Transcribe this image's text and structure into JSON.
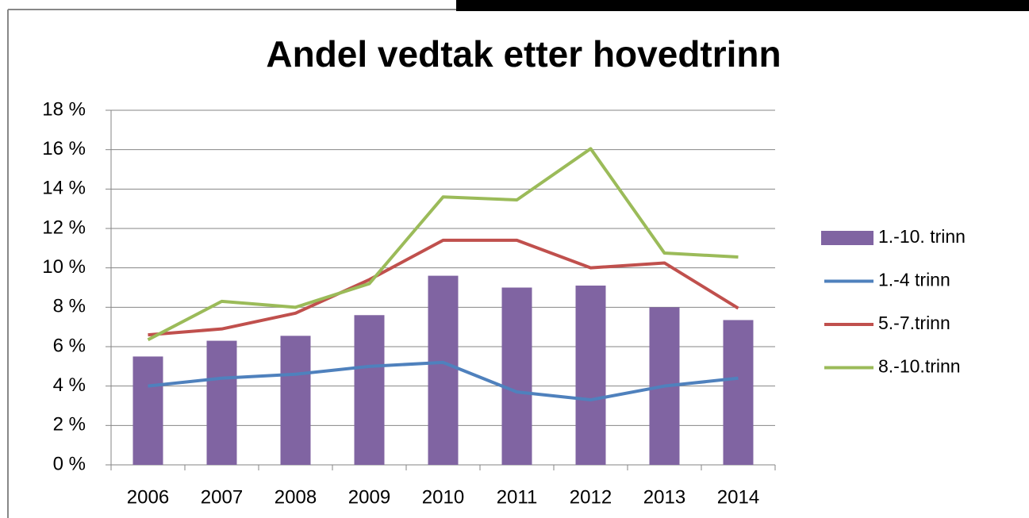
{
  "chart_data": {
    "type": "bar",
    "title": "Andel vedtak etter hovedtrinn",
    "categories": [
      "2006",
      "2007",
      "2008",
      "2009",
      "2010",
      "2011",
      "2012",
      "2013",
      "2014"
    ],
    "series": [
      {
        "name": "1.-10. trinn",
        "type": "bar",
        "color": "#8064a2",
        "values": [
          5.5,
          6.3,
          6.55,
          7.6,
          9.6,
          9.0,
          9.1,
          8.0,
          7.35
        ]
      },
      {
        "name": "1.-4 trinn",
        "type": "line",
        "color": "#4f81bd",
        "values": [
          4.0,
          4.4,
          4.6,
          5.0,
          5.2,
          3.7,
          3.3,
          4.0,
          4.4
        ]
      },
      {
        "name": "5.-7.trinn",
        "type": "line",
        "color": "#c0504d",
        "values": [
          6.6,
          6.9,
          7.7,
          9.4,
          11.4,
          11.4,
          10.0,
          10.25,
          7.95
        ]
      },
      {
        "name": "8.-10.trinn",
        "type": "line",
        "color": "#9bbb59",
        "values": [
          6.35,
          8.3,
          8.0,
          9.2,
          13.6,
          13.45,
          16.05,
          10.75,
          10.55
        ]
      }
    ],
    "ylim": [
      0,
      18
    ],
    "yticks": [
      {
        "value": 0,
        "label": "0 %"
      },
      {
        "value": 2,
        "label": "2 %"
      },
      {
        "value": 4,
        "label": "4 %"
      },
      {
        "value": 6,
        "label": "6 %"
      },
      {
        "value": 8,
        "label": "8 %"
      },
      {
        "value": 10,
        "label": "10 %"
      },
      {
        "value": 12,
        "label": "12 %"
      },
      {
        "value": 14,
        "label": "14 %"
      },
      {
        "value": 16,
        "label": "16 %"
      },
      {
        "value": 18,
        "label": "18 %"
      }
    ],
    "grid": true,
    "legend": "right"
  }
}
